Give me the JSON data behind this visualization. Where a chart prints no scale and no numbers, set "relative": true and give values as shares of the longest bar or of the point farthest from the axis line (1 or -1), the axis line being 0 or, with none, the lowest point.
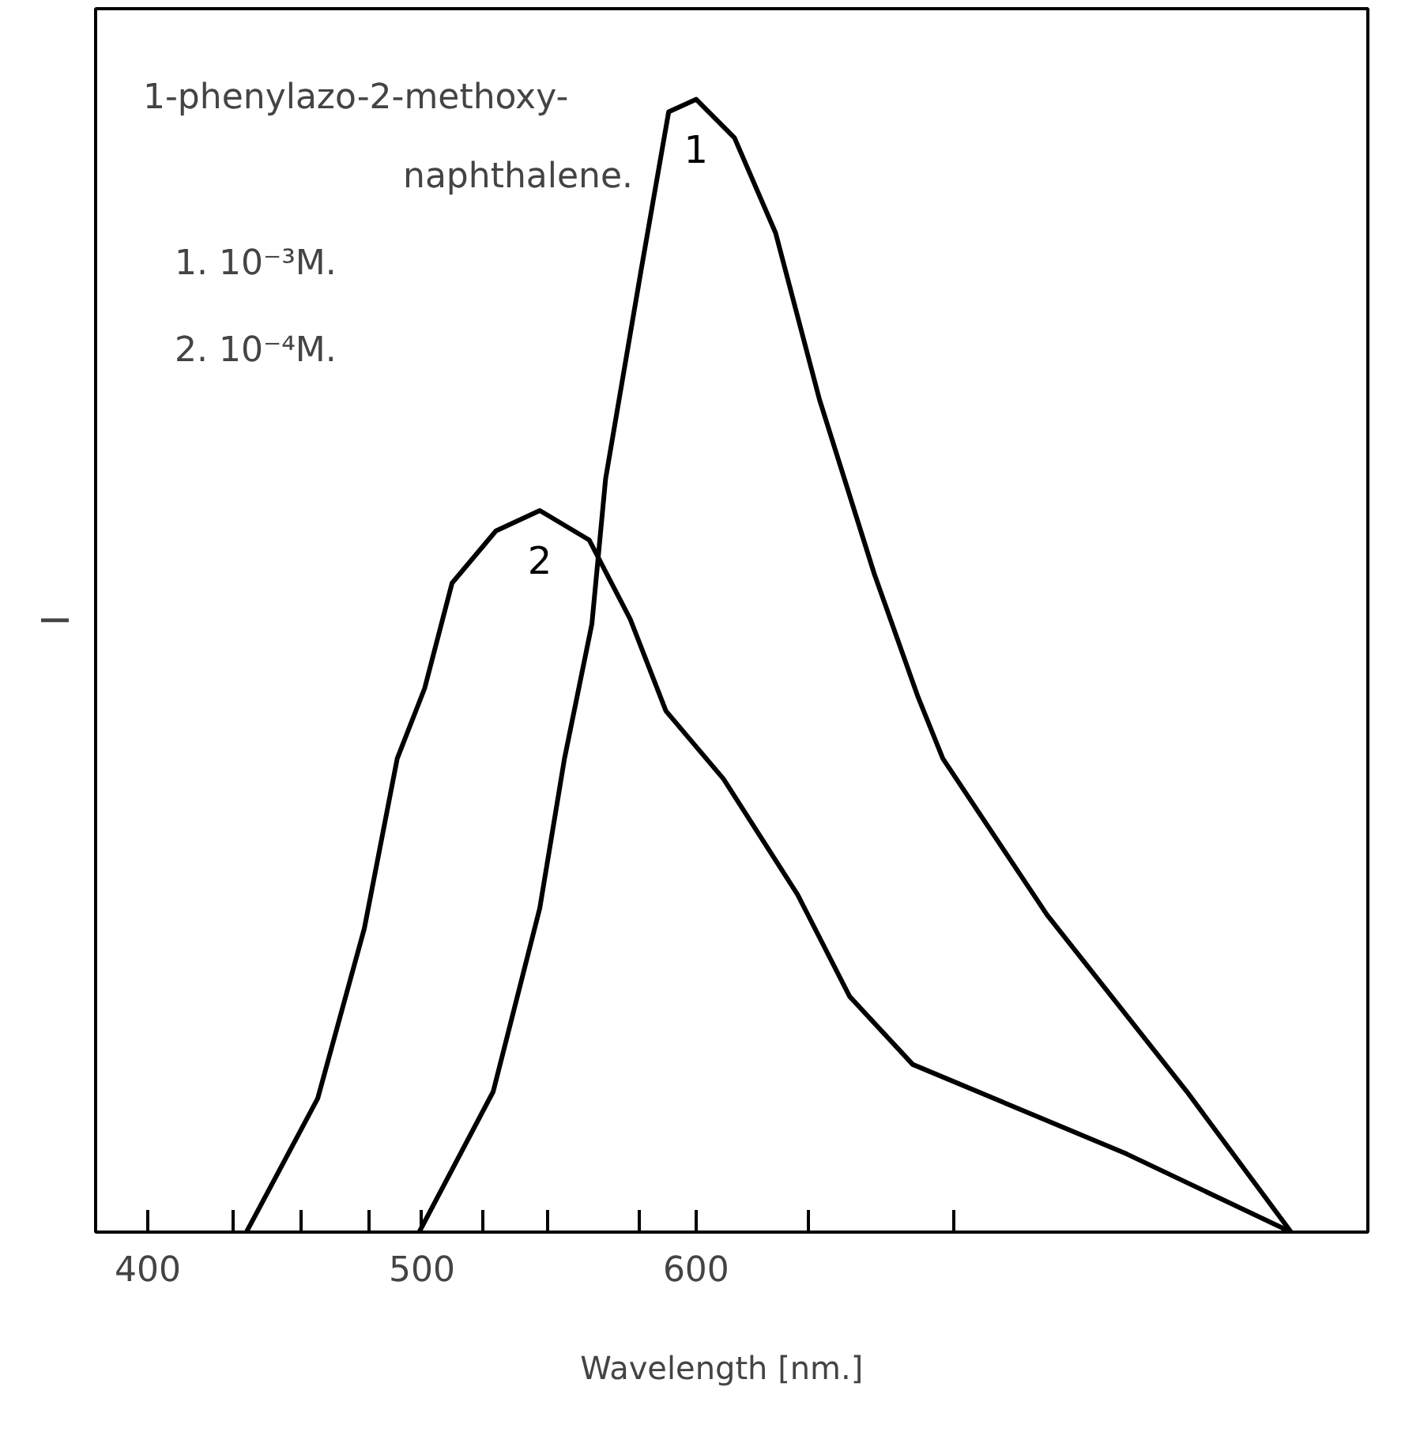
{
  "chart_data": {
    "type": "line",
    "relative": true,
    "xlabel": "Wavelength   [nm.]",
    "ylabel": "I",
    "annotations": [
      "1-phenylazo-2-methoxy-",
      "naphthalene.",
      "1. 10⁻³M.",
      "2. 10⁻⁴M."
    ],
    "xlim": [
      381,
      845
    ],
    "xticks": [
      400,
      {
        "value": 431,
        "label": null
      },
      {
        "value": 456,
        "label": null
      },
      {
        "value": 481,
        "label": null
      },
      500,
      {
        "value": 522,
        "label": null
      },
      {
        "value": 546,
        "label": null
      },
      {
        "value": 579,
        "label": null
      },
      600,
      {
        "value": 641,
        "label": null
      },
      {
        "value": 694,
        "label": null
      }
    ],
    "tick_labels": "x",
    "grid": false,
    "series": [
      {
        "name": "1",
        "color": "#000000",
        "x": [
          499,
          526,
          543,
          552,
          562,
          567,
          580,
          590,
          600,
          614,
          629,
          645,
          665,
          681,
          690,
          728,
          779,
          817
        ],
        "values": [
          0,
          0.124,
          0.286,
          0.418,
          0.537,
          0.665,
          0.85,
          0.989,
          1.0,
          0.966,
          0.882,
          0.735,
          0.581,
          0.472,
          0.418,
          0.28,
          0.124,
          0
        ]
      },
      {
        "name": "2",
        "color": "#000000",
        "x": [
          436,
          462,
          479,
          491,
          501,
          511,
          527,
          543,
          561,
          576,
          589,
          610,
          637,
          656,
          679,
          757,
          817
        ],
        "values": [
          0,
          0.118,
          0.268,
          0.418,
          0.48,
          0.573,
          0.619,
          0.637,
          0.611,
          0.541,
          0.46,
          0.4,
          0.298,
          0.208,
          0.148,
          0.069,
          0
        ]
      }
    ]
  }
}
